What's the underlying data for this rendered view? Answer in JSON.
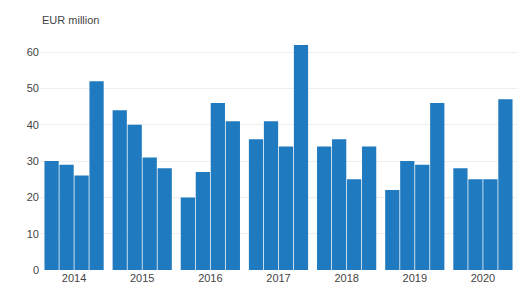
{
  "chart_data": {
    "type": "bar",
    "ylabel": "EUR million",
    "categories": [
      "2014",
      "2015",
      "2016",
      "2017",
      "2018",
      "2019",
      "2020"
    ],
    "series": [
      {
        "color": "#1f7abf",
        "values": [
          30,
          44,
          20,
          36,
          34,
          22,
          28
        ]
      },
      {
        "color": "#1f7abf",
        "values": [
          29,
          40,
          27,
          41,
          36,
          30,
          25
        ]
      },
      {
        "color": "#1f7abf",
        "values": [
          26,
          31,
          46,
          34,
          25,
          29,
          25
        ]
      },
      {
        "color": "#1f7abf",
        "values": [
          52,
          28,
          41,
          62,
          34,
          46,
          47
        ]
      }
    ],
    "ylim": [
      0,
      65
    ],
    "yticks": [
      0,
      10,
      20,
      30,
      40,
      50,
      60
    ],
    "grid": true
  }
}
